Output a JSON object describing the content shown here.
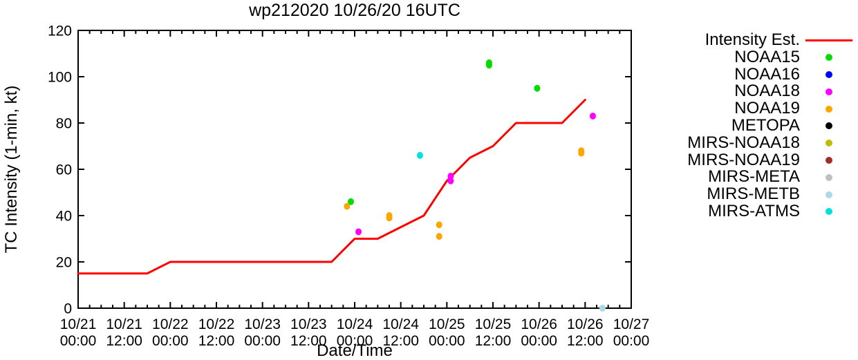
{
  "chart_data": {
    "type": "line",
    "title": "wp212020 10/26/20 16UTC",
    "xlabel": "Date/Time",
    "ylabel": "TC Intensity (1-min, kt)",
    "ylim": [
      0,
      120
    ],
    "y_ticks": [
      0,
      20,
      40,
      60,
      80,
      100,
      120
    ],
    "xlim_hours_from_10_21_0000": [
      0,
      144
    ],
    "x_major_tick_interval_hours": 12,
    "x_minor_tick_interval_hours": 3,
    "grid": "off",
    "legend_position": "right-outside",
    "x_tick_labels": [
      [
        "10/21",
        "00:00"
      ],
      [
        "10/21",
        "12:00"
      ],
      [
        "10/22",
        "00:00"
      ],
      [
        "10/22",
        "12:00"
      ],
      [
        "10/23",
        "00:00"
      ],
      [
        "10/23",
        "12:00"
      ],
      [
        "10/24",
        "00:00"
      ],
      [
        "10/24",
        "12:00"
      ],
      [
        "10/25",
        "00:00"
      ],
      [
        "10/25",
        "12:00"
      ],
      [
        "10/26",
        "00:00"
      ],
      [
        "10/26",
        "12:00"
      ],
      [
        "10/27",
        "00:00"
      ]
    ],
    "line_series": {
      "name": "Intensity Est.",
      "color": "#ff0000",
      "points_hours_kt": [
        [
          0,
          15
        ],
        [
          6,
          15
        ],
        [
          12,
          15
        ],
        [
          18,
          15
        ],
        [
          24,
          20
        ],
        [
          30,
          20
        ],
        [
          36,
          20
        ],
        [
          42,
          20
        ],
        [
          48,
          20
        ],
        [
          54,
          20
        ],
        [
          60,
          20
        ],
        [
          66,
          20
        ],
        [
          72,
          30
        ],
        [
          78,
          30
        ],
        [
          84,
          35
        ],
        [
          90,
          40
        ],
        [
          96,
          55
        ],
        [
          102,
          65
        ],
        [
          108,
          70
        ],
        [
          114,
          80
        ],
        [
          120,
          80
        ],
        [
          126,
          80
        ],
        [
          132,
          90
        ]
      ]
    },
    "scatter_series": [
      {
        "name": "NOAA15",
        "color": "#00dd00",
        "points_hours_kt": [
          [
            71,
            46
          ],
          [
            107,
            106
          ],
          [
            107,
            105
          ],
          [
            119.5,
            95
          ]
        ]
      },
      {
        "name": "NOAA16",
        "color": "#0000ff",
        "points_hours_kt": []
      },
      {
        "name": "NOAA18",
        "color": "#ff00ff",
        "points_hours_kt": [
          [
            73,
            33
          ],
          [
            97,
            57
          ],
          [
            97,
            55
          ],
          [
            134,
            83
          ]
        ]
      },
      {
        "name": "NOAA19",
        "color": "#ffa500",
        "points_hours_kt": [
          [
            70,
            44
          ],
          [
            81,
            40
          ],
          [
            81,
            39
          ],
          [
            94,
            36
          ],
          [
            94,
            31
          ],
          [
            131,
            68
          ],
          [
            131,
            67
          ]
        ]
      },
      {
        "name": "METOPA",
        "color": "#000000",
        "points_hours_kt": []
      },
      {
        "name": "MIRS-NOAA18",
        "color": "#bebe00",
        "points_hours_kt": []
      },
      {
        "name": "MIRS-NOAA19",
        "color": "#a52a2a",
        "points_hours_kt": []
      },
      {
        "name": "MIRS-META",
        "color": "#c0c0c0",
        "points_hours_kt": []
      },
      {
        "name": "MIRS-METB",
        "color": "#add8e6",
        "points_hours_kt": [
          [
            136.5,
            0
          ]
        ]
      },
      {
        "name": "MIRS-ATMS",
        "color": "#00e0e0",
        "points_hours_kt": [
          [
            89,
            66
          ]
        ]
      }
    ],
    "legend_entries": [
      {
        "label": "Intensity Est.",
        "color": "#ff0000",
        "marker": "line"
      },
      {
        "label": "NOAA15",
        "color": "#00dd00",
        "marker": "dot"
      },
      {
        "label": "NOAA16",
        "color": "#0000ff",
        "marker": "dot"
      },
      {
        "label": "NOAA18",
        "color": "#ff00ff",
        "marker": "dot"
      },
      {
        "label": "NOAA19",
        "color": "#ffa500",
        "marker": "dot"
      },
      {
        "label": "METOPA",
        "color": "#000000",
        "marker": "dot"
      },
      {
        "label": "MIRS-NOAA18",
        "color": "#bebe00",
        "marker": "dot"
      },
      {
        "label": "MIRS-NOAA19",
        "color": "#a52a2a",
        "marker": "dot"
      },
      {
        "label": "MIRS-META",
        "color": "#c0c0c0",
        "marker": "dot"
      },
      {
        "label": "MIRS-METB",
        "color": "#add8e6",
        "marker": "dot"
      },
      {
        "label": "MIRS-ATMS",
        "color": "#00e0e0",
        "marker": "dot"
      }
    ],
    "axis_color": "#000000",
    "tick_label_font_px": 21
  }
}
